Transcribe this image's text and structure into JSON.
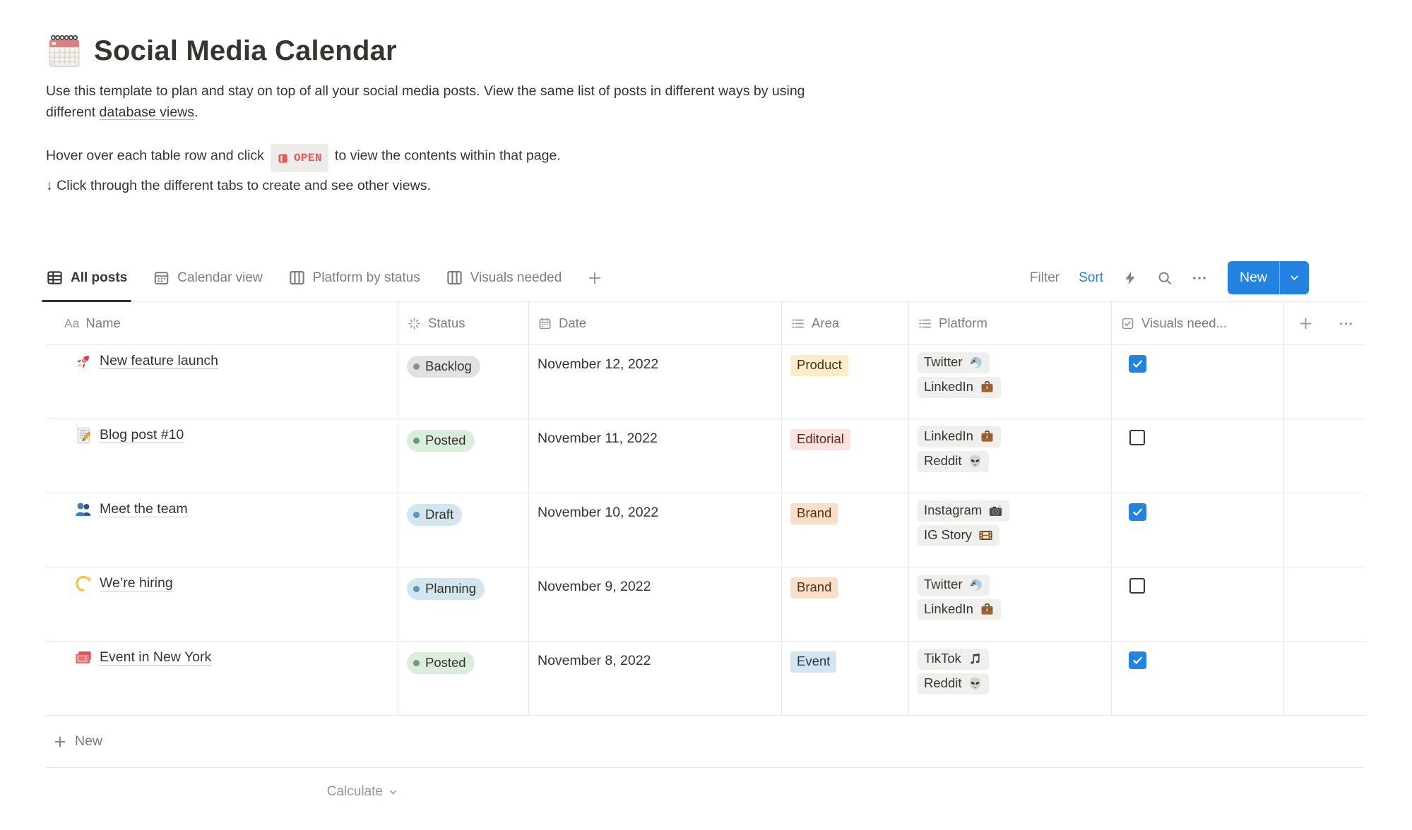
{
  "page": {
    "icon": "spiral-calendar",
    "title": "Social Media Calendar",
    "intro": {
      "text_before_link": "Use this template to plan and stay on top of all your social media posts. View the same list of posts in different ways by using different ",
      "link_text": "database views",
      "text_after_link": "."
    },
    "hint_open": {
      "before": "Hover over each table row and click",
      "badge_icon": "open-page",
      "badge_label": "OPEN",
      "after": "to view the contents within that page."
    },
    "hint_tabs": "↓ Click through the different tabs to create and see other views."
  },
  "toolbar": {
    "tabs": [
      {
        "label": "All posts",
        "icon": "table-view",
        "active": true
      },
      {
        "label": "Calendar view",
        "icon": "calendar-view",
        "active": false
      },
      {
        "label": "Platform by status",
        "icon": "board-view",
        "active": false
      },
      {
        "label": "Visuals needed",
        "icon": "board-view",
        "active": false
      }
    ],
    "add_view_icon": "plus",
    "filter_label": "Filter",
    "sort_label": "Sort",
    "quick_icon": "lightning",
    "search_icon": "search",
    "more_icon": "dots",
    "new_button_label": "New",
    "new_button_dropdown_icon": "chevron-down"
  },
  "table": {
    "columns": [
      {
        "label": "Name",
        "icon": "Aa"
      },
      {
        "label": "Status",
        "icon": "status-burst"
      },
      {
        "label": "Date",
        "icon": "calendar"
      },
      {
        "label": "Area",
        "icon": "list"
      },
      {
        "label": "Platform",
        "icon": "list"
      },
      {
        "label": "Visuals need...",
        "icon": "checkbox"
      }
    ],
    "header_add_icon": "plus",
    "header_more_icon": "dots",
    "rows": [
      {
        "icon": "rocket",
        "name": "New feature launch",
        "status": {
          "label": "Backlog",
          "color": "gray"
        },
        "date": "November 12, 2022",
        "area": {
          "label": "Product",
          "color": "yellow"
        },
        "platforms": [
          {
            "label": "Twitter",
            "icon": "bird"
          },
          {
            "label": "LinkedIn",
            "icon": "briefcase"
          }
        ],
        "visuals_needed": true
      },
      {
        "icon": "memo",
        "name": "Blog post #10",
        "status": {
          "label": "Posted",
          "color": "green"
        },
        "date": "November 11, 2022",
        "area": {
          "label": "Editorial",
          "color": "red"
        },
        "platforms": [
          {
            "label": "LinkedIn",
            "icon": "briefcase"
          },
          {
            "label": "Reddit",
            "icon": "alien"
          }
        ],
        "visuals_needed": false
      },
      {
        "icon": "busts",
        "name": "Meet the team",
        "status": {
          "label": "Draft",
          "color": "blue"
        },
        "date": "November 10, 2022",
        "area": {
          "label": "Brand",
          "color": "orange"
        },
        "platforms": [
          {
            "label": "Instagram",
            "icon": "camera"
          },
          {
            "label": "IG Story",
            "icon": "film"
          }
        ],
        "visuals_needed": true
      },
      {
        "icon": "dizzy",
        "name": "We’re hiring",
        "status": {
          "label": "Planning",
          "color": "blue"
        },
        "date": "November 9, 2022",
        "area": {
          "label": "Brand",
          "color": "orange"
        },
        "platforms": [
          {
            "label": "Twitter",
            "icon": "bird"
          },
          {
            "label": "LinkedIn",
            "icon": "briefcase"
          }
        ],
        "visuals_needed": false
      },
      {
        "icon": "tickets",
        "name": "Event in New York",
        "status": {
          "label": "Posted",
          "color": "green"
        },
        "date": "November 8, 2022",
        "area": {
          "label": "Event",
          "color": "blue"
        },
        "platforms": [
          {
            "label": "TikTok",
            "icon": "music-notes"
          },
          {
            "label": "Reddit",
            "icon": "alien"
          }
        ],
        "visuals_needed": true
      }
    ],
    "new_row_label": "New",
    "footer_calculate_label": "Calculate"
  },
  "colors": {
    "accent_blue": "#2383E2",
    "open_red": "#EB5757",
    "status_gray_bg": "#E3E2E0",
    "status_green_bg": "#DBEDDB",
    "status_blue_bg": "#D3E5EF",
    "tag_yellow_bg": "#FDECC8",
    "tag_red_bg": "#FFE2DD",
    "tag_orange_bg": "#FADEC9",
    "tag_blue_bg": "#D3E5EF",
    "platform_pill_bg": "#EFEFED",
    "table_border": "#E9E9E7",
    "text_dark": "#37352F",
    "text_gray": "#7F7C77"
  }
}
